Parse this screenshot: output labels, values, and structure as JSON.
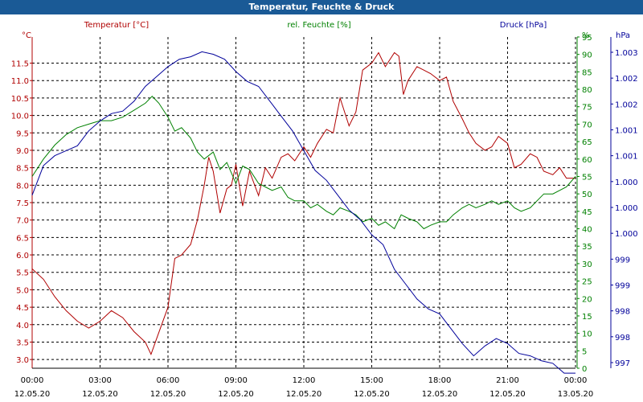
{
  "window": {
    "title": "Temperatur, Feuchte & Druck"
  },
  "colors": {
    "temperature": "#b00000",
    "humidity": "#008000",
    "pressure": "#00009a",
    "titlebar": "#1a5a96",
    "grid": "#000000"
  },
  "chart_data": {
    "type": "line",
    "title": "Temperatur, Feuchte & Druck",
    "grid": true,
    "x_ticks": [
      {
        "time": "00:00",
        "date": "12.05.20"
      },
      {
        "time": "03:00",
        "date": "12.05.20"
      },
      {
        "time": "06:00",
        "date": "12.05.20"
      },
      {
        "time": "09:00",
        "date": "12.05.20"
      },
      {
        "time": "12:00",
        "date": "12.05.20"
      },
      {
        "time": "15:00",
        "date": "12.05.20"
      },
      {
        "time": "18:00",
        "date": "12.05.20"
      },
      {
        "time": "21:00",
        "date": "12.05.20"
      },
      {
        "time": "00:00",
        "date": "13.05.20"
      }
    ],
    "xlim": [
      "12.05.20 00:00",
      "13.05.20 00:00"
    ],
    "axes": {
      "temperature": {
        "unit": "°C",
        "ylim": [
          2.75,
          12.25
        ],
        "ticks": [
          "3.0",
          "3.5",
          "4.0",
          "4.5",
          "5.0",
          "5.5",
          "6.0",
          "6.5",
          "7.0",
          "7.5",
          "8.0",
          "8.5",
          "9.0",
          "9.5",
          "10.0",
          "10.5",
          "11.0",
          "11.5"
        ]
      },
      "humidity": {
        "unit": "%",
        "ylim": [
          0,
          95
        ],
        "ticks": [
          "0",
          "5",
          "10",
          "15",
          "20",
          "25",
          "30",
          "35",
          "40",
          "45",
          "50",
          "55",
          "60",
          "65",
          "70",
          "75",
          "80",
          "85",
          "90",
          "95"
        ]
      },
      "pressure": {
        "unit": "hPa",
        "ylim": [
          996.7,
          1003.4
        ],
        "ticks": [
          "997",
          "998",
          "998",
          "999",
          "999",
          "1.000",
          "1.000",
          "1.000",
          "1.001",
          "1.001",
          "1.002",
          "1.002",
          "1.003"
        ]
      }
    },
    "series": [
      {
        "name": "Temperatur [°C]",
        "axis": "temperature",
        "x_hours": [
          0,
          0.5,
          1,
          1.5,
          2,
          2.5,
          3,
          3.5,
          4,
          4.5,
          5,
          5.25,
          5.5,
          6,
          6.3,
          6.6,
          7,
          7.3,
          7.6,
          7.8,
          8,
          8.3,
          8.6,
          8.8,
          9,
          9.3,
          9.6,
          10,
          10.3,
          10.6,
          11,
          11.3,
          11.6,
          12,
          12.3,
          12.6,
          13,
          13.3,
          13.6,
          14,
          14.3,
          14.6,
          15,
          15.3,
          15.6,
          16,
          16.2,
          16.4,
          16.6,
          17,
          17.3,
          17.6,
          18,
          18.3,
          18.6,
          19,
          19.3,
          19.6,
          20,
          20.3,
          20.6,
          21,
          21.3,
          21.6,
          22,
          22.3,
          22.6,
          23,
          23.3,
          23.6,
          24
        ],
        "values": [
          5.6,
          5.3,
          4.8,
          4.4,
          4.1,
          3.9,
          4.1,
          4.4,
          4.2,
          3.8,
          3.5,
          3.15,
          3.6,
          4.5,
          5.9,
          6.0,
          6.3,
          7.0,
          8.0,
          8.8,
          8.4,
          7.2,
          7.9,
          8.0,
          8.6,
          7.4,
          8.4,
          7.7,
          8.5,
          8.2,
          8.8,
          8.9,
          8.7,
          9.1,
          8.8,
          9.2,
          9.6,
          9.5,
          10.5,
          9.7,
          10.1,
          11.3,
          11.5,
          11.8,
          11.4,
          11.8,
          11.7,
          10.6,
          11.0,
          11.4,
          11.3,
          11.2,
          11.0,
          11.1,
          10.4,
          9.9,
          9.5,
          9.2,
          9.0,
          9.1,
          9.4,
          9.2,
          8.5,
          8.6,
          8.9,
          8.8,
          8.4,
          8.3,
          8.5,
          8.2,
          8.2
        ]
      },
      {
        "name": "rel. Feuchte [%]",
        "axis": "humidity",
        "x_hours": [
          0,
          0.5,
          1,
          1.5,
          2,
          2.5,
          3,
          3.5,
          4,
          4.5,
          5,
          5.3,
          5.6,
          6,
          6.3,
          6.6,
          7,
          7.3,
          7.6,
          8,
          8.3,
          8.6,
          8.8,
          9,
          9.3,
          9.6,
          10,
          10.3,
          10.6,
          11,
          11.3,
          11.6,
          12,
          12.3,
          12.6,
          13,
          13.3,
          13.6,
          14,
          14.3,
          14.6,
          15,
          15.3,
          15.6,
          16,
          16.3,
          16.6,
          17,
          17.3,
          17.6,
          18,
          18.3,
          18.6,
          19,
          19.3,
          19.6,
          20,
          20.3,
          20.6,
          21,
          21.3,
          21.6,
          22,
          22.3,
          22.6,
          23,
          23.3,
          23.6,
          24
        ],
        "values": [
          55,
          60,
          64,
          67,
          69,
          70,
          71,
          71,
          72,
          74,
          76,
          78,
          76,
          72,
          68,
          69,
          66,
          62,
          60,
          62,
          57,
          59,
          56,
          53,
          58,
          57,
          53,
          52,
          51,
          52,
          49,
          48,
          48,
          46,
          47,
          45,
          44,
          46,
          45,
          44,
          42,
          43,
          41,
          42,
          40,
          44,
          43,
          42,
          40,
          41,
          42,
          42,
          44,
          46,
          47,
          46,
          47,
          48,
          47,
          48,
          46,
          45,
          46,
          48,
          50,
          50,
          51,
          52,
          55
        ]
      },
      {
        "name": "Druck [hPa]",
        "axis": "pressure",
        "x_hours": [
          0,
          0.5,
          1,
          1.5,
          2,
          2.5,
          3,
          3.5,
          4,
          4.5,
          5,
          5.5,
          6,
          6.5,
          7,
          7.5,
          8,
          8.5,
          9,
          9.5,
          10,
          10.5,
          11,
          11.5,
          12,
          12.5,
          13,
          13.5,
          14,
          14.5,
          15,
          15.5,
          16,
          16.5,
          17,
          17.5,
          18,
          18.5,
          19,
          19.5,
          20,
          20.5,
          21,
          21.5,
          22,
          22.5,
          23,
          23.5,
          24
        ],
        "values": [
          1000.2,
          1000.8,
          1001.0,
          1001.1,
          1001.2,
          1001.5,
          1001.7,
          1001.85,
          1001.9,
          1002.1,
          1002.4,
          1002.6,
          1002.8,
          1002.95,
          1003.0,
          1003.1,
          1003.05,
          1002.95,
          1002.7,
          1002.5,
          1002.4,
          1002.1,
          1001.8,
          1001.5,
          1001.1,
          1000.7,
          1000.5,
          1000.2,
          999.9,
          999.7,
          999.4,
          999.2,
          998.7,
          998.4,
          998.1,
          997.9,
          997.8,
          997.5,
          997.2,
          996.95,
          997.15,
          997.3,
          997.2,
          997.0,
          996.95,
          996.85,
          996.8,
          996.6,
          996.6
        ]
      }
    ]
  }
}
